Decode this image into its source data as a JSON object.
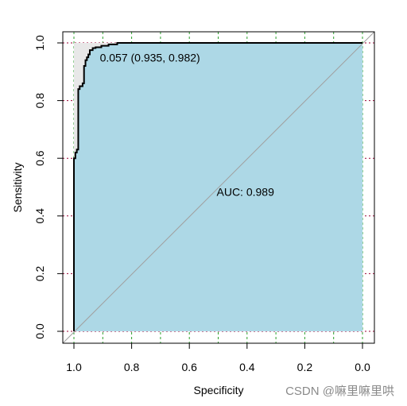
{
  "chart_data": {
    "type": "line",
    "title": "",
    "xlabel": "Specificity",
    "ylabel": "Sensitivity",
    "x_reversed": true,
    "xlim": [
      1.0,
      0.0
    ],
    "ylim": [
      0.0,
      1.0
    ],
    "xticks": [
      1.0,
      0.8,
      0.6,
      0.4,
      0.2,
      0.0
    ],
    "xtick_labels": [
      "1.0",
      "0.8",
      "0.6",
      "0.4",
      "0.2",
      "0.0"
    ],
    "yticks": [
      0.0,
      0.2,
      0.4,
      0.6,
      0.8,
      1.0
    ],
    "ytick_labels": [
      "0.0",
      "0.2",
      "0.4",
      "0.6",
      "0.8",
      "1.0"
    ],
    "grid": true,
    "vertical_grid_positions": [
      1.0,
      0.9,
      0.8,
      0.7,
      0.6,
      0.5,
      0.4,
      0.3,
      0.2,
      0.1,
      0.0
    ],
    "auc_label": "AUC: 0.989",
    "auc_label_position": {
      "specificity": 0.5,
      "sensitivity": 0.47
    },
    "threshold_label": "0.057 (0.935, 0.982)",
    "threshold_point": {
      "specificity": 0.935,
      "sensitivity": 0.982
    },
    "series": [
      {
        "values": [
          [
            1.0,
            0.0
          ],
          [
            1.0,
            0.6
          ],
          [
            0.995,
            0.6
          ],
          [
            0.995,
            0.62
          ],
          [
            0.99,
            0.62
          ],
          [
            0.99,
            0.63
          ],
          [
            0.985,
            0.63
          ],
          [
            0.985,
            0.84
          ],
          [
            0.98,
            0.84
          ],
          [
            0.98,
            0.85
          ],
          [
            0.97,
            0.85
          ],
          [
            0.97,
            0.86
          ],
          [
            0.965,
            0.86
          ],
          [
            0.965,
            0.92
          ],
          [
            0.96,
            0.92
          ],
          [
            0.96,
            0.94
          ],
          [
            0.955,
            0.94
          ],
          [
            0.955,
            0.95
          ],
          [
            0.95,
            0.95
          ],
          [
            0.95,
            0.96
          ],
          [
            0.945,
            0.96
          ],
          [
            0.945,
            0.975
          ],
          [
            0.935,
            0.975
          ],
          [
            0.935,
            0.982
          ],
          [
            0.925,
            0.982
          ],
          [
            0.925,
            0.985
          ],
          [
            0.905,
            0.985
          ],
          [
            0.905,
            0.99
          ],
          [
            0.88,
            0.99
          ],
          [
            0.88,
            0.995
          ],
          [
            0.85,
            0.995
          ],
          [
            0.85,
            1.0
          ],
          [
            0.0,
            1.0
          ]
        ]
      }
    ],
    "colors": {
      "roc_fill": "#add8e6",
      "roc_line": "#000000",
      "ci_fill": "#e8e8e8",
      "diagonal": "#a0a0a0",
      "grid_x": "#2ca02c",
      "grid_y": "#990033"
    }
  },
  "watermark": "CSDN @嘛里嘛里哄"
}
